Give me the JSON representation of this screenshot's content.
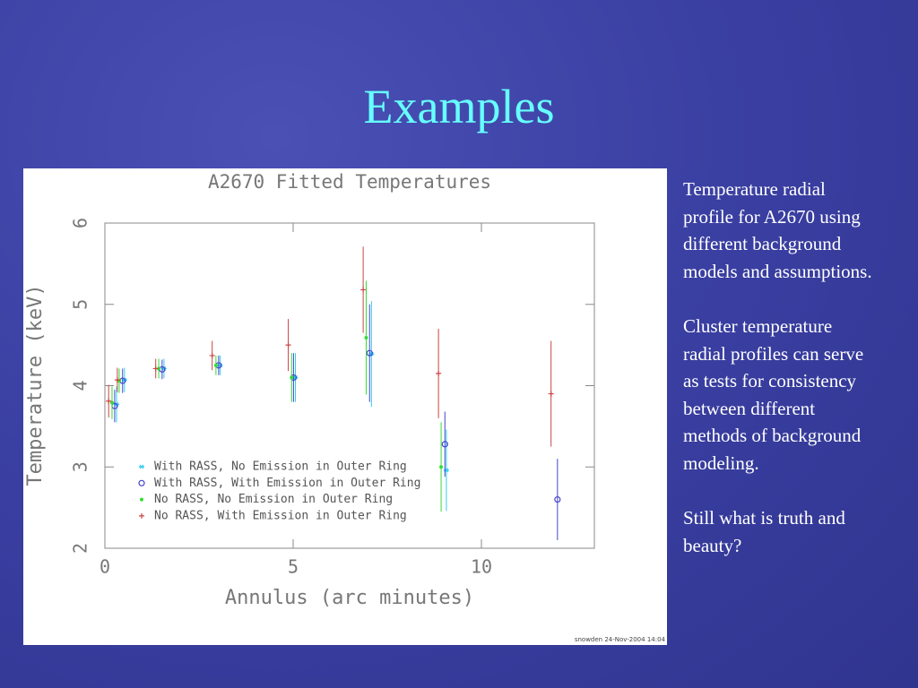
{
  "slide": {
    "title": "Examples",
    "paragraphs": [
      "Temperature radial profile for A2670 using different background models and assumptions.",
      "Cluster temperature radial profiles can serve as tests for consistency between different methods of background modeling.",
      "Still what is truth and beauty?"
    ]
  },
  "chart_data": {
    "type": "errorbar",
    "title": "A2670 Fitted Temperatures",
    "x_label": "Annulus (arc minutes)",
    "y_label": "Temperature (keV)",
    "xlim": [
      0,
      13
    ],
    "ylim": [
      2,
      6
    ],
    "xticks": [
      0,
      5,
      10
    ],
    "yticks": [
      2,
      3,
      4,
      5,
      6
    ],
    "footnote": "snowden 24-Nov-2004 14:04",
    "series": [
      {
        "name": "With RASS, No Emission in Outer Ring",
        "color": "#33ccee",
        "marker": "star",
        "x": [
          0.31,
          0.52,
          1.57,
          3.06,
          5.06,
          7.08,
          9.07
        ],
        "values": [
          3.77,
          4.07,
          4.21,
          4.25,
          4.1,
          4.39,
          2.96
        ],
        "errors": [
          0.22,
          0.15,
          0.12,
          0.12,
          0.3,
          0.65,
          0.5
        ]
      },
      {
        "name": "With RASS, With Emission in Outer Ring",
        "color": "#4444cc",
        "marker": "circle",
        "x": [
          0.26,
          0.47,
          1.52,
          3.02,
          5.01,
          7.03,
          9.03,
          12.02
        ],
        "values": [
          3.75,
          4.06,
          4.2,
          4.25,
          4.1,
          4.4,
          3.28,
          2.6
        ],
        "errors": [
          0.2,
          0.15,
          0.12,
          0.12,
          0.3,
          0.6,
          0.4,
          0.5
        ]
      },
      {
        "name": "No RASS, No Emission in Outer Ring",
        "color": "#33dd33",
        "marker": "dot",
        "x": [
          0.19,
          0.38,
          1.43,
          2.95,
          4.96,
          6.94,
          8.93
        ],
        "values": [
          3.79,
          4.06,
          4.21,
          4.25,
          4.1,
          4.59,
          3.0
        ],
        "errors": [
          0.2,
          0.15,
          0.12,
          0.12,
          0.3,
          0.7,
          0.55
        ]
      },
      {
        "name": "No RASS, With Emission in Outer Ring",
        "color": "#cc4444",
        "marker": "plus",
        "x": [
          0.1,
          0.33,
          1.35,
          2.85,
          4.87,
          6.86,
          8.86,
          11.85
        ],
        "values": [
          3.81,
          4.07,
          4.21,
          4.37,
          4.5,
          5.18,
          4.15,
          3.9
        ],
        "errors": [
          0.2,
          0.15,
          0.12,
          0.18,
          0.32,
          0.53,
          0.55,
          0.65
        ]
      }
    ]
  }
}
